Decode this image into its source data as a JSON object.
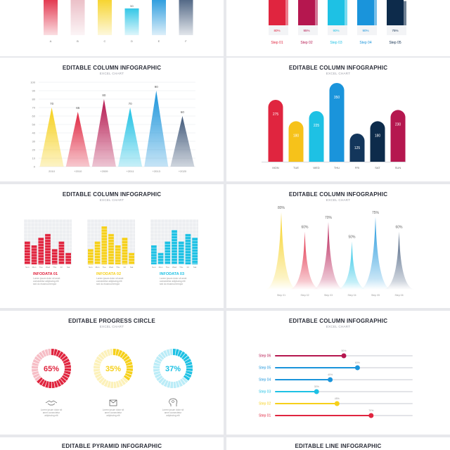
{
  "page": {
    "card_titles": {
      "columns": "EDITABLE COLUMN INFOGRAPHIC",
      "progress": "EDITABLE PROGRESS CIRCLE",
      "pyramid": "EDITABLE PYRAMID INFOGRAPHIC",
      "line": "EDITABLE LINE INFOGRAPHIC"
    },
    "subtitle": "EXCEL CHART"
  },
  "colors": {
    "red": "#e0253f",
    "maroon": "#b5174f",
    "yellow": "#f6d01a",
    "cyan": "#1ec1e4",
    "blue": "#1a94db",
    "navy": "#0d2b4b",
    "slate": "#41597a",
    "grid": "#e6e7ea"
  },
  "chart_data": [
    {
      "id": "top-left-bars",
      "type": "bar",
      "categories": [
        "A",
        "B",
        "C",
        "D",
        "E",
        "F"
      ],
      "values": [
        null,
        null,
        null,
        50,
        null,
        null
      ],
      "value_labels": [
        "",
        "",
        "",
        "50",
        "",
        ""
      ]
    },
    {
      "id": "top-right-3d-bars",
      "type": "bar",
      "categories": [
        "Step 01",
        "Step 02",
        "Step 03",
        "Step 04",
        "Step 05"
      ],
      "values": [
        80,
        95,
        90,
        90,
        75
      ],
      "value_labels": [
        "80%",
        "95%",
        "90%",
        "90%",
        "75%"
      ]
    },
    {
      "id": "cone-column",
      "type": "bar",
      "categories": [
        "2010",
        "+2010",
        "+2009",
        "+2011",
        "+2013",
        "+2020"
      ],
      "values": [
        70,
        65,
        80,
        70,
        90,
        60
      ],
      "y_ticks": [
        0,
        10,
        20,
        30,
        40,
        50,
        60,
        70,
        80,
        90,
        100
      ],
      "ylim": [
        0,
        100
      ],
      "grid": true
    },
    {
      "id": "pill-column",
      "type": "bar",
      "categories": [
        "MON",
        "TUE",
        "WED",
        "THU",
        "FRI",
        "SAT",
        "SUN"
      ],
      "values": [
        275,
        180,
        225,
        350,
        125,
        180,
        230
      ]
    },
    {
      "id": "mini-bar-panels",
      "type": "bar",
      "categories": [
        "Sun",
        "Mon",
        "Tue",
        "Wed",
        "Thu",
        "Fri",
        "Sat"
      ],
      "series": [
        {
          "name": "INFODATA 01",
          "values": [
            6,
            5,
            7,
            8,
            4,
            6,
            3
          ]
        },
        {
          "name": "INFODATA 02",
          "values": [
            4,
            6,
            10,
            8,
            5,
            7,
            3
          ]
        },
        {
          "name": "INFODATA 03",
          "values": [
            5,
            3,
            6,
            9,
            6,
            8,
            7
          ]
        }
      ],
      "captions": [
        "Lorem ipsum dolor sit amet consectetur adipiscing elit sed do eiusmod tempor",
        "Lorem ipsum dolor sit amet consectetur adipiscing elit sed do eiusmod tempor",
        "Lorem ipsum dolor sit amet consectetur adipiscing elit sed do eiusmod tempor"
      ]
    },
    {
      "id": "spike-column",
      "type": "bar",
      "categories": [
        "Step 01",
        "Step 02",
        "Step 03",
        "Step 04",
        "Step 05",
        "Step 06"
      ],
      "values": [
        80,
        60,
        70,
        50,
        75,
        60
      ],
      "value_labels": [
        "80%",
        "60%",
        "70%",
        "50%",
        "75%",
        "60%"
      ]
    },
    {
      "id": "progress-circles",
      "type": "pie",
      "values": [
        65,
        35,
        37
      ],
      "value_labels": [
        "65%",
        "35%",
        "37%"
      ],
      "icons": [
        "handshake-icon",
        "mail-icon",
        "head-idea-icon"
      ],
      "captions": [
        "Lorem ipsum dolor sit amet consectetur adipiscing elit",
        "Lorem ipsum dolor sit amet consectetur adipiscing elit",
        "Lorem ipsum dolor sit amet consectetur adipiscing elit"
      ]
    },
    {
      "id": "horizontal-steps",
      "type": "bar",
      "orientation": "horizontal",
      "categories": [
        "Step 06",
        "Step 05",
        "Step 04",
        "Step 03",
        "Step 02",
        "Step 01"
      ],
      "values": [
        50,
        60,
        40,
        30,
        45,
        70
      ],
      "value_labels": [
        "50%",
        "60%",
        "40%",
        "30%",
        "45%",
        "70%"
      ]
    }
  ]
}
